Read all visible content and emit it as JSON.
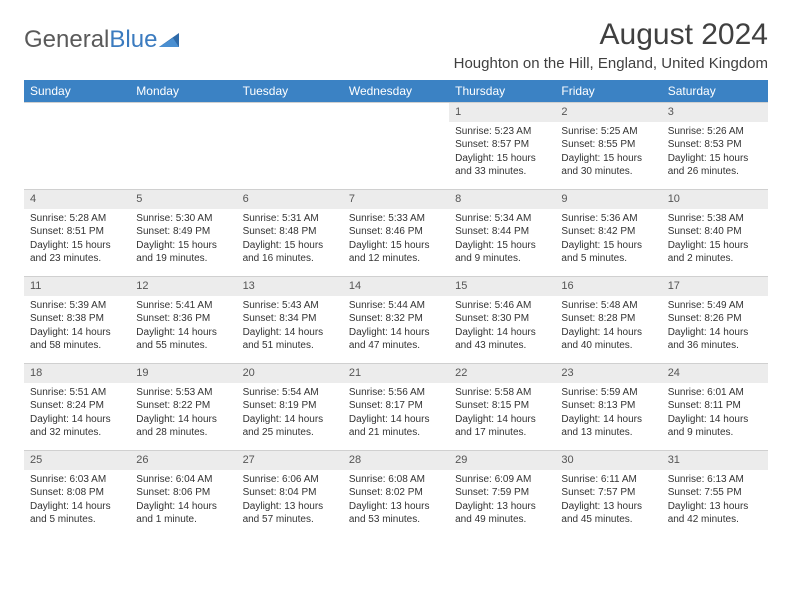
{
  "logo": {
    "text1": "General",
    "text2": "Blue"
  },
  "title": "August 2024",
  "location": "Houghton on the Hill, England, United Kingdom",
  "colors": {
    "header_bg": "#3b82c4",
    "header_text": "#ffffff",
    "daynum_bg": "#ececec",
    "text": "#333333",
    "logo_gray": "#5a5a5a",
    "logo_blue": "#3b7bbf"
  },
  "daysOfWeek": [
    "Sunday",
    "Monday",
    "Tuesday",
    "Wednesday",
    "Thursday",
    "Friday",
    "Saturday"
  ],
  "weeks": [
    [
      {
        "n": "",
        "sr": "",
        "ss": "",
        "dl": ""
      },
      {
        "n": "",
        "sr": "",
        "ss": "",
        "dl": ""
      },
      {
        "n": "",
        "sr": "",
        "ss": "",
        "dl": ""
      },
      {
        "n": "",
        "sr": "",
        "ss": "",
        "dl": ""
      },
      {
        "n": "1",
        "sr": "Sunrise: 5:23 AM",
        "ss": "Sunset: 8:57 PM",
        "dl": "Daylight: 15 hours and 33 minutes."
      },
      {
        "n": "2",
        "sr": "Sunrise: 5:25 AM",
        "ss": "Sunset: 8:55 PM",
        "dl": "Daylight: 15 hours and 30 minutes."
      },
      {
        "n": "3",
        "sr": "Sunrise: 5:26 AM",
        "ss": "Sunset: 8:53 PM",
        "dl": "Daylight: 15 hours and 26 minutes."
      }
    ],
    [
      {
        "n": "4",
        "sr": "Sunrise: 5:28 AM",
        "ss": "Sunset: 8:51 PM",
        "dl": "Daylight: 15 hours and 23 minutes."
      },
      {
        "n": "5",
        "sr": "Sunrise: 5:30 AM",
        "ss": "Sunset: 8:49 PM",
        "dl": "Daylight: 15 hours and 19 minutes."
      },
      {
        "n": "6",
        "sr": "Sunrise: 5:31 AM",
        "ss": "Sunset: 8:48 PM",
        "dl": "Daylight: 15 hours and 16 minutes."
      },
      {
        "n": "7",
        "sr": "Sunrise: 5:33 AM",
        "ss": "Sunset: 8:46 PM",
        "dl": "Daylight: 15 hours and 12 minutes."
      },
      {
        "n": "8",
        "sr": "Sunrise: 5:34 AM",
        "ss": "Sunset: 8:44 PM",
        "dl": "Daylight: 15 hours and 9 minutes."
      },
      {
        "n": "9",
        "sr": "Sunrise: 5:36 AM",
        "ss": "Sunset: 8:42 PM",
        "dl": "Daylight: 15 hours and 5 minutes."
      },
      {
        "n": "10",
        "sr": "Sunrise: 5:38 AM",
        "ss": "Sunset: 8:40 PM",
        "dl": "Daylight: 15 hours and 2 minutes."
      }
    ],
    [
      {
        "n": "11",
        "sr": "Sunrise: 5:39 AM",
        "ss": "Sunset: 8:38 PM",
        "dl": "Daylight: 14 hours and 58 minutes."
      },
      {
        "n": "12",
        "sr": "Sunrise: 5:41 AM",
        "ss": "Sunset: 8:36 PM",
        "dl": "Daylight: 14 hours and 55 minutes."
      },
      {
        "n": "13",
        "sr": "Sunrise: 5:43 AM",
        "ss": "Sunset: 8:34 PM",
        "dl": "Daylight: 14 hours and 51 minutes."
      },
      {
        "n": "14",
        "sr": "Sunrise: 5:44 AM",
        "ss": "Sunset: 8:32 PM",
        "dl": "Daylight: 14 hours and 47 minutes."
      },
      {
        "n": "15",
        "sr": "Sunrise: 5:46 AM",
        "ss": "Sunset: 8:30 PM",
        "dl": "Daylight: 14 hours and 43 minutes."
      },
      {
        "n": "16",
        "sr": "Sunrise: 5:48 AM",
        "ss": "Sunset: 8:28 PM",
        "dl": "Daylight: 14 hours and 40 minutes."
      },
      {
        "n": "17",
        "sr": "Sunrise: 5:49 AM",
        "ss": "Sunset: 8:26 PM",
        "dl": "Daylight: 14 hours and 36 minutes."
      }
    ],
    [
      {
        "n": "18",
        "sr": "Sunrise: 5:51 AM",
        "ss": "Sunset: 8:24 PM",
        "dl": "Daylight: 14 hours and 32 minutes."
      },
      {
        "n": "19",
        "sr": "Sunrise: 5:53 AM",
        "ss": "Sunset: 8:22 PM",
        "dl": "Daylight: 14 hours and 28 minutes."
      },
      {
        "n": "20",
        "sr": "Sunrise: 5:54 AM",
        "ss": "Sunset: 8:19 PM",
        "dl": "Daylight: 14 hours and 25 minutes."
      },
      {
        "n": "21",
        "sr": "Sunrise: 5:56 AM",
        "ss": "Sunset: 8:17 PM",
        "dl": "Daylight: 14 hours and 21 minutes."
      },
      {
        "n": "22",
        "sr": "Sunrise: 5:58 AM",
        "ss": "Sunset: 8:15 PM",
        "dl": "Daylight: 14 hours and 17 minutes."
      },
      {
        "n": "23",
        "sr": "Sunrise: 5:59 AM",
        "ss": "Sunset: 8:13 PM",
        "dl": "Daylight: 14 hours and 13 minutes."
      },
      {
        "n": "24",
        "sr": "Sunrise: 6:01 AM",
        "ss": "Sunset: 8:11 PM",
        "dl": "Daylight: 14 hours and 9 minutes."
      }
    ],
    [
      {
        "n": "25",
        "sr": "Sunrise: 6:03 AM",
        "ss": "Sunset: 8:08 PM",
        "dl": "Daylight: 14 hours and 5 minutes."
      },
      {
        "n": "26",
        "sr": "Sunrise: 6:04 AM",
        "ss": "Sunset: 8:06 PM",
        "dl": "Daylight: 14 hours and 1 minute."
      },
      {
        "n": "27",
        "sr": "Sunrise: 6:06 AM",
        "ss": "Sunset: 8:04 PM",
        "dl": "Daylight: 13 hours and 57 minutes."
      },
      {
        "n": "28",
        "sr": "Sunrise: 6:08 AM",
        "ss": "Sunset: 8:02 PM",
        "dl": "Daylight: 13 hours and 53 minutes."
      },
      {
        "n": "29",
        "sr": "Sunrise: 6:09 AM",
        "ss": "Sunset: 7:59 PM",
        "dl": "Daylight: 13 hours and 49 minutes."
      },
      {
        "n": "30",
        "sr": "Sunrise: 6:11 AM",
        "ss": "Sunset: 7:57 PM",
        "dl": "Daylight: 13 hours and 45 minutes."
      },
      {
        "n": "31",
        "sr": "Sunrise: 6:13 AM",
        "ss": "Sunset: 7:55 PM",
        "dl": "Daylight: 13 hours and 42 minutes."
      }
    ]
  ]
}
